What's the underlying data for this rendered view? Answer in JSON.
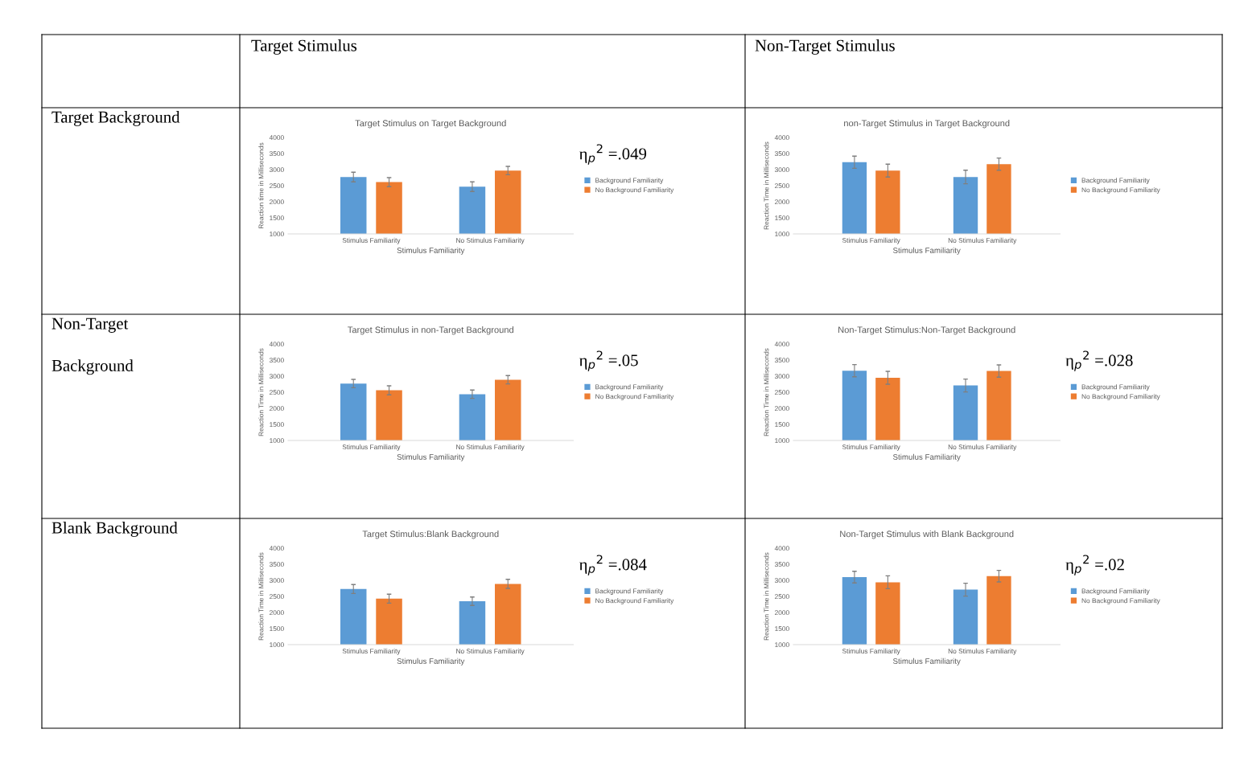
{
  "chart_data": [
    {
      "type": "other",
      "annotations": [
        "Target Stimulus",
        "Non-Target Stimulus",
        "Target Background",
        "Non-Target\n\nBackground",
        "Blank Background"
      ]
    },
    {
      "type": "bar",
      "title": "Target Stimulus on Target Background",
      "xlabel": "Stimulus Familiarity",
      "ylabel": "Reaction time in Milliseconds",
      "categories": [
        "Stimulus Familiarity",
        "No Stimulus Familiarity"
      ],
      "ylim": [
        1000,
        4000
      ],
      "yticks": [
        1000,
        1500,
        2000,
        2500,
        3000,
        3500,
        4000
      ],
      "grid": false,
      "legend": "right",
      "annotations": [
        "η$_{p}$$^{2}$ =.049"
      ],
      "series": [
        {
          "name": "Background Familiarity",
          "color": "#5b9bd5",
          "values": [
            2770,
            2470
          ],
          "errors": [
            150,
            150
          ]
        },
        {
          "name": "No Background Familiarity",
          "color": "#ed7d31",
          "values": [
            2610,
            2970
          ],
          "errors": [
            140,
            130
          ]
        }
      ]
    },
    {
      "type": "bar",
      "title": "non-Target Stimulus in Target Background",
      "xlabel": "Stimulus Familiarity",
      "ylabel": "Reaction Time in Milliseconds",
      "categories": [
        "Stimulus Familiarity",
        "No Stimulus Familiarity"
      ],
      "ylim": [
        1000,
        4000
      ],
      "yticks": [
        1000,
        1500,
        2000,
        2500,
        3000,
        3500,
        4000
      ],
      "grid": false,
      "legend": "right",
      "series": [
        {
          "name": "Background Familiarity",
          "color": "#5b9bd5",
          "values": [
            3230,
            2770
          ],
          "errors": [
            190,
            210
          ]
        },
        {
          "name": "No Background Familiarity",
          "color": "#ed7d31",
          "values": [
            2970,
            3170
          ],
          "errors": [
            200,
            190
          ]
        }
      ]
    },
    {
      "type": "bar",
      "title": "Target Stimulus in non-Target Background",
      "xlabel": "Stimulus Familiarity",
      "ylabel": "Reaction Time in Milliseconds",
      "categories": [
        "Stimulus Familiarity",
        "No Stimulus Familiarity"
      ],
      "ylim": [
        1000,
        4000
      ],
      "yticks": [
        1000,
        1500,
        2000,
        2500,
        3000,
        3500,
        4000
      ],
      "grid": false,
      "legend": "right",
      "annotations": [
        "η$_{p}$$^{2}$ =.05"
      ],
      "series": [
        {
          "name": "Background Familiarity",
          "color": "#5b9bd5",
          "values": [
            2770,
            2440
          ],
          "errors": [
            130,
            130
          ]
        },
        {
          "name": "No Background Familiarity",
          "color": "#ed7d31",
          "values": [
            2560,
            2890
          ],
          "errors": [
            140,
            130
          ]
        }
      ]
    },
    {
      "type": "bar",
      "title": "Non-Target Stimulus:Non-Target Background",
      "xlabel": "Stimulus Familiarity",
      "ylabel": "Reaction Time in Milliseconds",
      "categories": [
        "Stimulus Familiarity",
        "No Stimulus Familiarity"
      ],
      "ylim": [
        1000,
        4000
      ],
      "yticks": [
        1000,
        1500,
        2000,
        2500,
        3000,
        3500,
        4000
      ],
      "grid": false,
      "legend": "right",
      "annotations": [
        "η$_{p}$$^{2}$ =.028"
      ],
      "series": [
        {
          "name": "Background Familiarity",
          "color": "#5b9bd5",
          "values": [
            3170,
            2710
          ],
          "errors": [
            190,
            200
          ]
        },
        {
          "name": "No Background Familiarity",
          "color": "#ed7d31",
          "values": [
            2950,
            3160
          ],
          "errors": [
            200,
            190
          ]
        }
      ]
    },
    {
      "type": "bar",
      "title": "Target Stimulus:Blank Background",
      "xlabel": "Stimulus Familiarity",
      "ylabel": "Reaction Time in Milliseconds",
      "categories": [
        "Stimulus Familiarity",
        "No Stimulus Familiarity"
      ],
      "ylim": [
        1000,
        4000
      ],
      "yticks": [
        1000,
        1500,
        2000,
        2500,
        3000,
        3500,
        4000
      ],
      "grid": false,
      "legend": "right",
      "annotations": [
        "η$_{p}$$^{2}$ =.084"
      ],
      "series": [
        {
          "name": "Background Familiarity",
          "color": "#5b9bd5",
          "values": [
            2730,
            2350
          ],
          "errors": [
            140,
            130
          ]
        },
        {
          "name": "No Background Familiarity",
          "color": "#ed7d31",
          "values": [
            2430,
            2890
          ],
          "errors": [
            140,
            140
          ]
        }
      ]
    },
    {
      "type": "bar",
      "title": "Non-Target Stimulus with Blank Background",
      "xlabel": "Stimulus Familiarity",
      "ylabel": "Reaction Time in Milliseconds",
      "categories": [
        "Stimulus Familiarity",
        "No Stimulus Familiarity"
      ],
      "ylim": [
        1000,
        4000
      ],
      "yticks": [
        1000,
        1500,
        2000,
        2500,
        3000,
        3500,
        4000
      ],
      "grid": false,
      "legend": "right",
      "annotations": [
        "η$_{p}$$^{2}$ =.02"
      ],
      "series": [
        {
          "name": "Background Familiarity",
          "color": "#5b9bd5",
          "values": [
            3100,
            2710
          ],
          "errors": [
            180,
            200
          ]
        },
        {
          "name": "No Background Familiarity",
          "color": "#ed7d31",
          "values": [
            2940,
            3130
          ],
          "errors": [
            200,
            180
          ]
        }
      ]
    }
  ]
}
